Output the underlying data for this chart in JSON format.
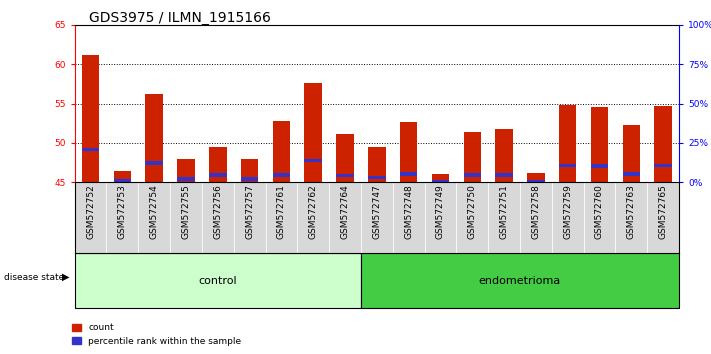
{
  "title": "GDS3975 / ILMN_1915166",
  "samples": [
    "GSM572752",
    "GSM572753",
    "GSM572754",
    "GSM572755",
    "GSM572756",
    "GSM572757",
    "GSM572761",
    "GSM572762",
    "GSM572764",
    "GSM572747",
    "GSM572748",
    "GSM572749",
    "GSM572750",
    "GSM572751",
    "GSM572758",
    "GSM572759",
    "GSM572760",
    "GSM572763",
    "GSM572765"
  ],
  "count_values": [
    61.1,
    46.4,
    56.2,
    48.0,
    49.5,
    48.0,
    52.8,
    57.6,
    51.1,
    49.5,
    52.6,
    46.1,
    51.4,
    51.8,
    46.2,
    54.8,
    54.5,
    52.3,
    54.7
  ],
  "percentile_values": [
    26,
    12,
    22,
    13,
    20,
    14,
    12,
    22,
    14,
    14,
    14,
    5,
    14,
    14,
    5,
    22,
    22,
    14,
    22
  ],
  "baseline": 45,
  "ylim_left": [
    45,
    65
  ],
  "ylim_right": [
    0,
    100
  ],
  "yticks_left": [
    45,
    50,
    55,
    60,
    65
  ],
  "yticks_right": [
    0,
    25,
    50,
    75,
    100
  ],
  "ytick_labels_right": [
    "0%",
    "25%",
    "50%",
    "75%",
    "100%"
  ],
  "n_control": 9,
  "n_endometrioma": 10,
  "bar_color_red": "#cc2200",
  "bar_color_blue": "#3333cc",
  "bar_width": 0.55,
  "bg_plot": "#ffffff",
  "bg_xtick": "#d8d8d8",
  "bg_label_control": "#ccffcc",
  "bg_label_endometrioma": "#44cc44",
  "control_label": "control",
  "endometrioma_label": "endometrioma",
  "disease_state_label": "disease state",
  "legend_count": "count",
  "legend_percentile": "percentile rank within the sample",
  "title_fontsize": 10,
  "tick_fontsize": 6.5,
  "label_fontsize": 8
}
